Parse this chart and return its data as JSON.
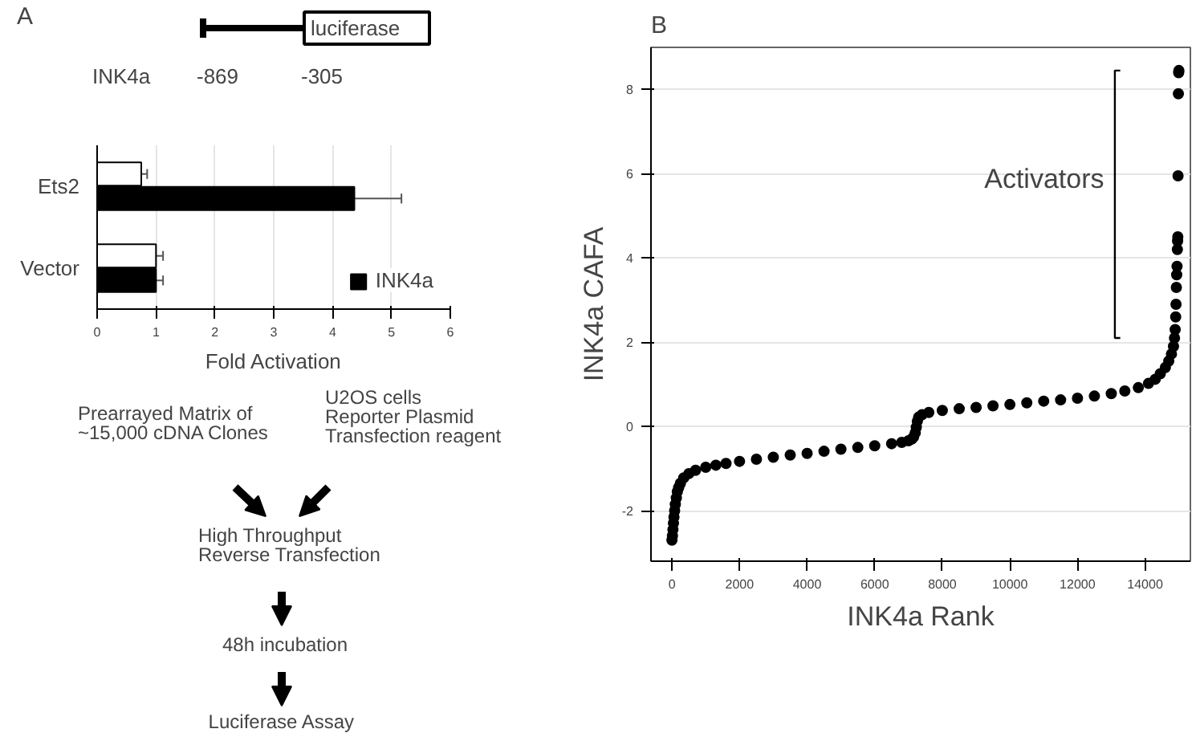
{
  "chart_data": [
    {
      "type": "other",
      "title": "A",
      "annotations": [
        "luciferase",
        "INK4a",
        "-869",
        "-305"
      ]
    },
    {
      "type": "bar",
      "orientation": "horizontal",
      "categories": [
        "Ets2",
        "Vector"
      ],
      "xlabel": "Fold Activation",
      "xlim": [
        0,
        6
      ],
      "xticks": [
        0,
        1,
        2,
        3,
        4,
        5,
        6
      ],
      "grid": "x",
      "legend": "bottom right",
      "series": [
        {
          "color": "#ffffff",
          "values": [
            0.75,
            1.0
          ],
          "errors": [
            0.1,
            0.12
          ]
        },
        {
          "name": "INK4a",
          "color": "#000000",
          "values": [
            4.37,
            1.0
          ],
          "errors": [
            0.8,
            0.12
          ]
        }
      ]
    },
    {
      "type": "other",
      "annotations": [
        "Prearrayed  Matrix of\n~15,000 cDNA Clones",
        "U2OS cells\nReporter Plasmid\nTransfection reagent",
        "High Throughput\nReverse Transfection",
        "48h incubation",
        "Luciferase Assay"
      ]
    },
    {
      "type": "scatter",
      "title": "B",
      "xlabel": "INK4a Rank",
      "ylabel": "INK4a CAFA",
      "xlim": [
        -620,
        15340
      ],
      "ylim": [
        -3.2,
        9.0
      ],
      "xticks": [
        0,
        2000,
        4000,
        6000,
        8000,
        10000,
        12000,
        14000
      ],
      "yticks": [
        -2,
        0,
        2,
        4,
        6,
        8
      ],
      "grid": "y",
      "marker": "circle",
      "annotations": [
        "Activators"
      ],
      "series": [
        {
          "color": "#000000",
          "x": [
            0,
            15,
            30,
            45,
            60,
            80,
            100,
            130,
            160,
            200,
            250,
            350,
            500,
            700,
            1000,
            1300,
            1600,
            2000,
            2500,
            3000,
            3500,
            4000,
            4500,
            5000,
            5500,
            6000,
            6500,
            6800,
            7000,
            7100,
            7150,
            7200,
            7230,
            7260,
            7300,
            7400,
            7600,
            8000,
            8500,
            9000,
            9500,
            10000,
            10500,
            11000,
            11500,
            12000,
            12500,
            13000,
            13400,
            13800,
            14100,
            14300,
            14450,
            14600,
            14700,
            14780,
            14840,
            14870,
            14890,
            14905,
            14915,
            14925,
            14935,
            14945,
            14955,
            14962,
            14968,
            14975,
            14985,
            14993,
            15000
          ],
          "values": [
            -2.7,
            -2.6,
            -2.45,
            -2.3,
            -2.15,
            -2.0,
            -1.85,
            -1.7,
            -1.55,
            -1.45,
            -1.35,
            -1.22,
            -1.12,
            -1.04,
            -0.97,
            -0.92,
            -0.88,
            -0.83,
            -0.78,
            -0.73,
            -0.68,
            -0.64,
            -0.59,
            -0.54,
            -0.5,
            -0.46,
            -0.41,
            -0.38,
            -0.34,
            -0.3,
            -0.25,
            -0.15,
            -0.02,
            0.12,
            0.22,
            0.28,
            0.33,
            0.38,
            0.42,
            0.45,
            0.49,
            0.52,
            0.56,
            0.6,
            0.63,
            0.67,
            0.72,
            0.78,
            0.84,
            0.92,
            1.02,
            1.12,
            1.25,
            1.4,
            1.55,
            1.72,
            1.9,
            2.1,
            2.3,
            2.6,
            2.9,
            3.3,
            3.6,
            3.8,
            4.2,
            4.4,
            4.5,
            5.95,
            7.9,
            8.4,
            8.45
          ]
        }
      ]
    }
  ]
}
